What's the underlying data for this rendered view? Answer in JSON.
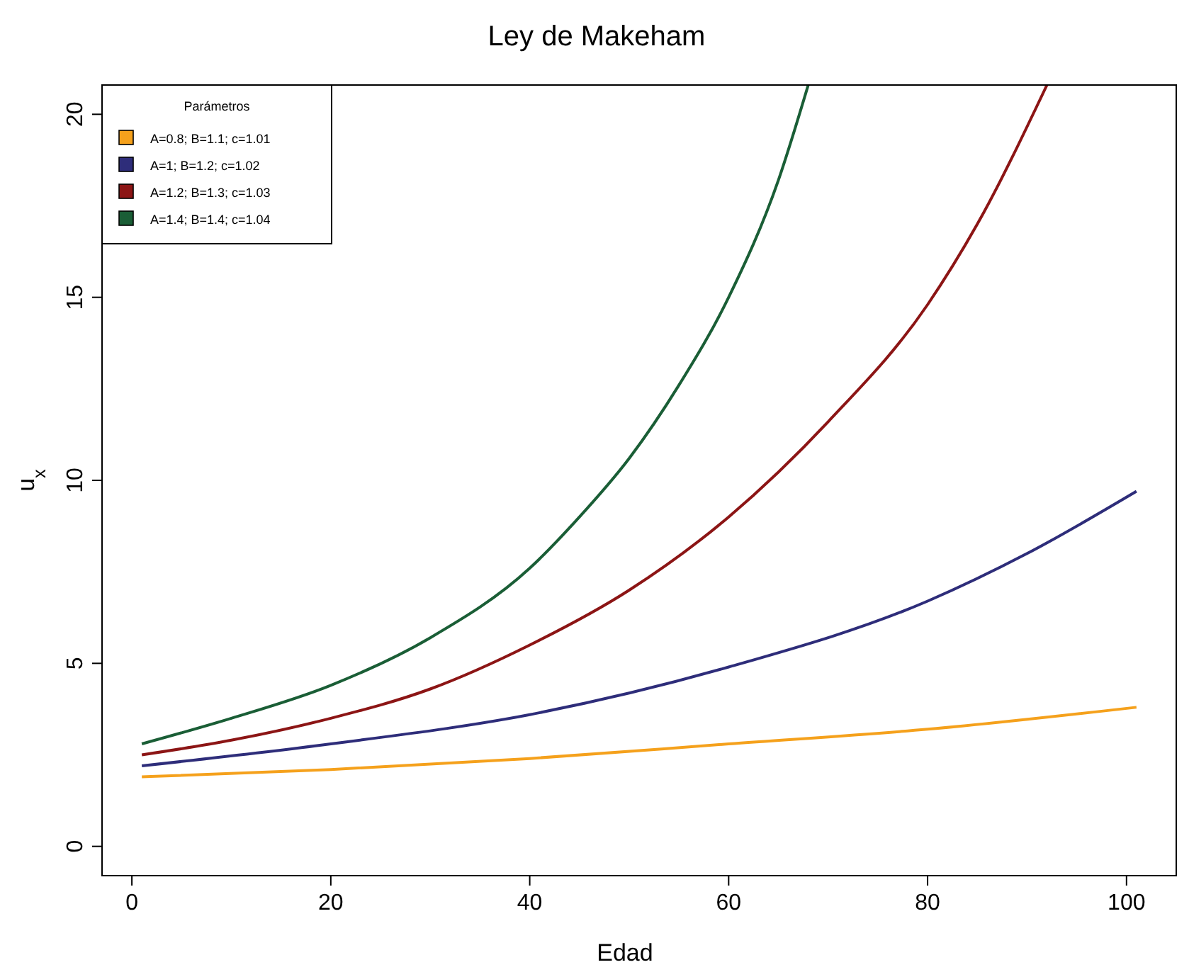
{
  "chart_data": {
    "type": "line",
    "title": "Ley de Makeham",
    "xlabel": "Edad",
    "ylabel": "u$_{x}$",
    "legend_title": "Parámetros",
    "legend": "top left",
    "grid": false,
    "line_style": "solid",
    "marker": "none",
    "xlim": [
      -3,
      105
    ],
    "xticks": [
      0,
      20,
      40,
      60,
      80,
      100
    ],
    "ylim": [
      -0.8,
      20.8
    ],
    "yticks": [
      0,
      5,
      10,
      15,
      20
    ],
    "series": [
      {
        "name": "A=0.8; B=1.1; c=1.01",
        "color": "#f5a11c",
        "x": [
          1,
          20,
          40,
          60,
          80,
          101
        ],
        "values": [
          1.9,
          2.1,
          2.4,
          2.8,
          3.2,
          3.8
        ]
      },
      {
        "name": "A=1; B=1.2; c=1.02",
        "color": "#2e2d7a",
        "x": [
          1,
          20,
          40,
          60,
          80,
          90,
          101
        ],
        "values": [
          2.2,
          2.8,
          3.6,
          4.9,
          6.7,
          8.0,
          9.7
        ]
      },
      {
        "name": "A=1.2; B=1.3; c=1.03",
        "color": "#8c1515",
        "x": [
          1,
          10,
          20,
          30,
          40,
          50,
          60,
          70,
          80,
          85,
          92
        ],
        "values": [
          2.5,
          2.9,
          3.5,
          4.3,
          5.5,
          7.0,
          9.0,
          11.6,
          14.8,
          17.0,
          20.8
        ]
      },
      {
        "name": "A=1.4; B=1.4; c=1.04",
        "color": "#1a5e36",
        "x": [
          1,
          10,
          20,
          30,
          40,
          45,
          50,
          55,
          60,
          65,
          68
        ],
        "values": [
          2.8,
          3.5,
          4.4,
          5.7,
          7.6,
          9.0,
          10.6,
          12.6,
          15.0,
          18.2,
          20.8
        ]
      }
    ]
  }
}
